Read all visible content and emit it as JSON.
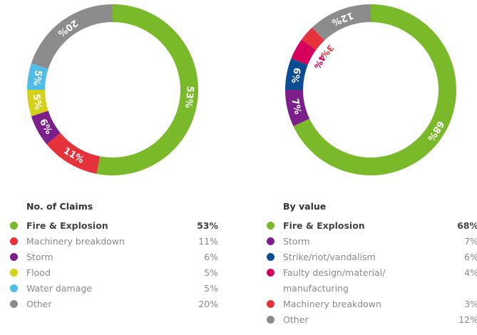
{
  "chart_data": [
    {
      "type": "pie",
      "title": "No. of Claims",
      "categories": [
        "Fire & Explosion",
        "Machinery breakdown",
        "Storm",
        "Flood",
        "Water damage",
        "Other"
      ],
      "values": [
        53,
        11,
        6,
        5,
        5,
        20
      ],
      "value_labels": [
        "53%",
        "11%",
        "6%",
        "5%",
        "5%",
        "20%"
      ],
      "colors": [
        "#7ab929",
        "#e5323b",
        "#7b1f8a",
        "#d4d11a",
        "#4fbde8",
        "#8c8c8c"
      ]
    },
    {
      "type": "pie",
      "title": "By value",
      "categories": [
        "Fire & Explosion",
        "Storm",
        "Strike/riot/vandalism",
        "Faulty design/material/ manufacturing",
        "Machinery breakdown",
        "Other"
      ],
      "values": [
        68,
        7,
        6,
        4,
        3,
        12
      ],
      "value_labels": [
        "68%",
        "7%",
        "6%",
        "4%",
        "3%",
        "12%"
      ],
      "colors": [
        "#7ab929",
        "#7b1f8a",
        "#0b4d92",
        "#d6005c",
        "#e5323b",
        "#8c8c8c"
      ]
    }
  ]
}
